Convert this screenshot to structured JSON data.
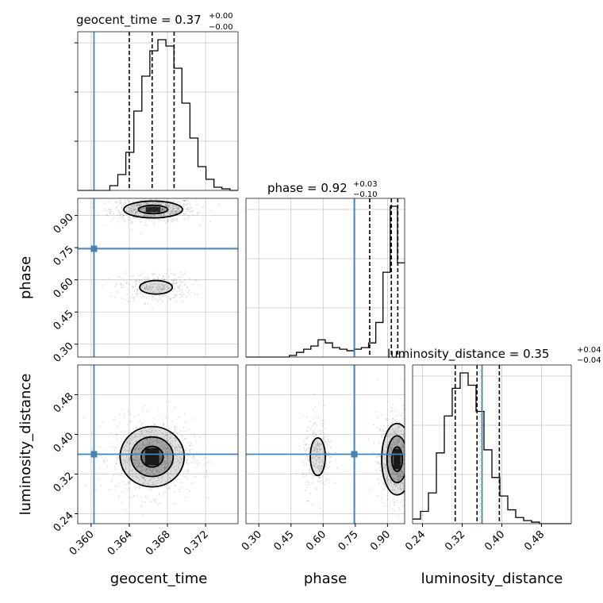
{
  "chart_data": {
    "type": "corner",
    "parameters": [
      "geocent_time",
      "phase",
      "luminosity_distance"
    ],
    "injection": {
      "geocent_time": 0.3603,
      "phase": 0.745,
      "luminosity_distance": 0.36
    },
    "ranges": {
      "geocent_time": [
        0.3586,
        0.3754
      ],
      "phase": [
        0.24,
        0.98
      ],
      "luminosity_distance": [
        0.22,
        0.54
      ]
    },
    "ticks": {
      "geocent_time": [
        "0.360",
        "0.364",
        "0.368",
        "0.372"
      ],
      "phase": [
        "0.30",
        "0.45",
        "0.60",
        "0.75",
        "0.90"
      ],
      "luminosity_distance": [
        "0.24",
        "0.32",
        "0.40",
        "0.48"
      ]
    },
    "titles": [
      {
        "name": "geocent_time",
        "value": "0.37",
        "upper": "+0.00",
        "lower": "−0.00"
      },
      {
        "name": "phase",
        "value": "0.92",
        "upper": "+0.03",
        "lower": "−0.10"
      },
      {
        "name": "luminosity_distance",
        "value": "0.35",
        "upper": "+0.04",
        "lower": "−0.04"
      }
    ],
    "quantiles": {
      "geocent_time": [
        0.364,
        0.3664,
        0.3687
      ],
      "phase": [
        0.817,
        0.918,
        0.948
      ],
      "luminosity_distance": [
        0.306,
        0.35,
        0.395
      ]
    },
    "histograms": {
      "geocent_time": [
        0,
        0,
        0,
        0,
        3,
        10,
        24,
        50,
        72,
        88,
        95,
        91,
        77,
        55,
        33,
        15,
        7,
        2,
        1,
        0
      ],
      "phase": [
        0,
        0,
        0,
        0,
        0,
        0,
        1,
        3,
        5,
        7,
        11,
        9,
        6,
        5,
        4,
        5,
        6,
        9,
        22,
        54,
        96,
        60
      ],
      "luminosity_distance": [
        3,
        8,
        20,
        46,
        70,
        88,
        98,
        90,
        73,
        48,
        30,
        18,
        9,
        4,
        2,
        1,
        0,
        0,
        0,
        0
      ]
    },
    "grid": true
  }
}
